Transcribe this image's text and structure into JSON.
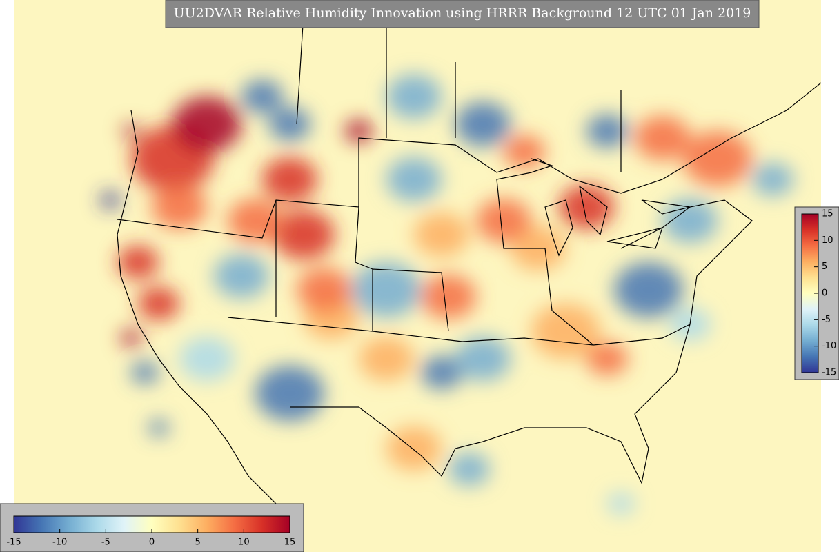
{
  "title": "UU2DVAR Relative Humidity Innovation using HRRR Background 12 UTC 01 Jan 2019",
  "colorbars": [
    {
      "orientation": "horizontal",
      "range": [
        -15,
        15
      ],
      "ticks": [
        -15,
        -10,
        -5,
        0,
        5,
        10,
        15
      ]
    },
    {
      "orientation": "vertical",
      "range": [
        -15,
        15
      ],
      "ticks": [
        -15,
        -10,
        -5,
        0,
        5,
        10,
        15
      ]
    }
  ],
  "colormap": [
    "#313695",
    "#4575b4",
    "#74add1",
    "#abd9e9",
    "#e0f3f8",
    "#ffffbf",
    "#fee090",
    "#fdae61",
    "#f46d43",
    "#d73027",
    "#a50026"
  ]
}
